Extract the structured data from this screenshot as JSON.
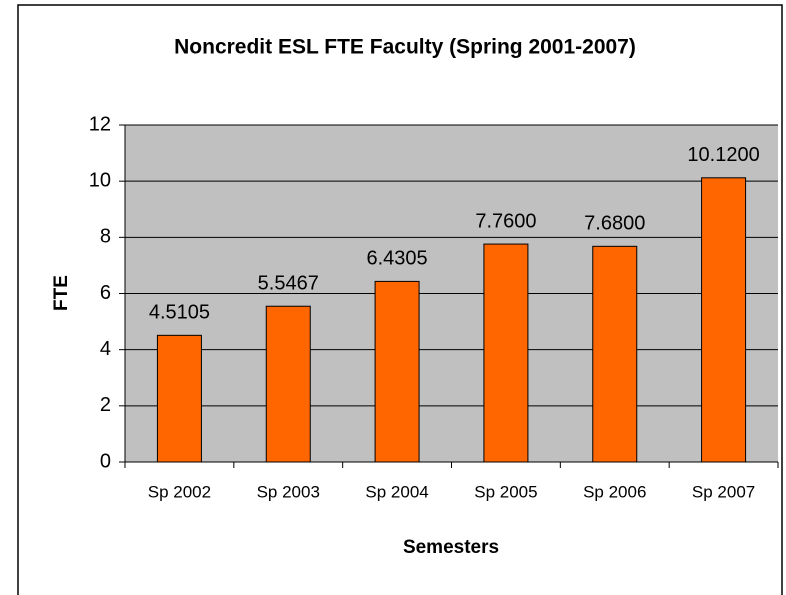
{
  "chart_data": {
    "type": "bar",
    "title": "Noncredit ESL FTE Faculty (Spring 2001-2007)",
    "x_label": "Semesters",
    "y_label": "FTE",
    "categories": [
      "Sp 2002",
      "Sp 2003",
      "Sp 2004",
      "Sp 2005",
      "Sp 2006",
      "Sp 2007"
    ],
    "values": [
      4.5105,
      5.5467,
      6.4305,
      7.76,
      7.68,
      10.12
    ],
    "value_labels": [
      "4.5105",
      "5.5467",
      "6.4305",
      "7.7600",
      "7.6800",
      "10.1200"
    ],
    "color": "#ff6600",
    "ylim": [
      0,
      12
    ],
    "yticks": [
      0,
      2,
      4,
      6,
      8,
      10,
      12
    ],
    "grid": true
  }
}
